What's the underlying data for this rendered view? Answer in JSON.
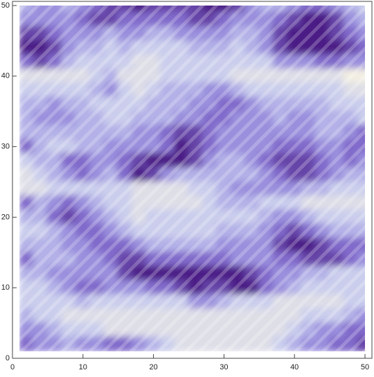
{
  "chart_data": {
    "type": "heatmap",
    "x": [
      2,
      4,
      6,
      8,
      10,
      12,
      14,
      16,
      18,
      20,
      22,
      24,
      26,
      28,
      30,
      32,
      34,
      36,
      38,
      40,
      42,
      44,
      46,
      48,
      50
    ],
    "y": [
      50,
      48,
      46,
      44,
      42,
      40,
      38,
      36,
      34,
      32,
      30,
      28,
      26,
      24,
      22,
      20,
      18,
      16,
      14,
      12,
      10,
      8,
      6,
      4,
      2
    ],
    "z": [
      [
        0.4,
        0.5,
        0.5,
        0.4,
        0.5,
        0.6,
        0.7,
        0.7,
        0.8,
        0.7,
        0.7,
        0.7,
        0.7,
        0.8,
        0.8,
        0.7,
        0.5,
        0.4,
        0.4,
        0.5,
        0.6,
        0.6,
        0.5,
        0.4,
        0.3
      ],
      [
        0.5,
        0.5,
        0.5,
        0.5,
        0.6,
        0.7,
        0.7,
        0.6,
        0.6,
        0.6,
        0.6,
        0.6,
        0.7,
        0.7,
        0.6,
        0.5,
        0.5,
        0.5,
        0.6,
        0.7,
        0.8,
        0.8,
        0.7,
        0.5,
        0.4
      ],
      [
        0.7,
        0.7,
        0.6,
        0.5,
        0.5,
        0.5,
        0.4,
        0.5,
        0.5,
        0.4,
        0.4,
        0.5,
        0.5,
        0.5,
        0.5,
        0.4,
        0.4,
        0.5,
        0.7,
        0.8,
        0.8,
        0.8,
        0.7,
        0.6,
        0.5
      ],
      [
        0.8,
        0.8,
        0.7,
        0.5,
        0.4,
        0.4,
        0.3,
        0.4,
        0.3,
        0.3,
        0.3,
        0.3,
        0.4,
        0.4,
        0.4,
        0.3,
        0.4,
        0.5,
        0.7,
        0.8,
        0.8,
        0.8,
        0.8,
        0.7,
        0.6
      ],
      [
        0.6,
        0.7,
        0.6,
        0.4,
        0.3,
        0.3,
        0.3,
        0.3,
        0.2,
        0.2,
        0.3,
        0.3,
        0.3,
        0.3,
        0.3,
        0.3,
        0.3,
        0.3,
        0.5,
        0.5,
        0.5,
        0.6,
        0.6,
        0.5,
        0.5
      ],
      [
        0.2,
        0.2,
        0.2,
        0.2,
        0.2,
        0.3,
        0.4,
        0.2,
        0.2,
        0.2,
        0.3,
        0.3,
        0.3,
        0.3,
        0.3,
        0.2,
        0.2,
        0.2,
        0.2,
        0.2,
        0.2,
        0.2,
        0.2,
        0.1,
        0.1
      ],
      [
        0.3,
        0.3,
        0.3,
        0.3,
        0.3,
        0.4,
        0.5,
        0.3,
        0.2,
        0.3,
        0.4,
        0.4,
        0.4,
        0.5,
        0.5,
        0.4,
        0.3,
        0.3,
        0.3,
        0.3,
        0.3,
        0.3,
        0.3,
        0.2,
        0.2
      ],
      [
        0.4,
        0.4,
        0.5,
        0.4,
        0.4,
        0.3,
        0.3,
        0.3,
        0.3,
        0.4,
        0.4,
        0.4,
        0.5,
        0.5,
        0.6,
        0.6,
        0.5,
        0.4,
        0.4,
        0.4,
        0.4,
        0.4,
        0.3,
        0.3,
        0.3
      ],
      [
        0.4,
        0.5,
        0.5,
        0.5,
        0.4,
        0.4,
        0.3,
        0.3,
        0.4,
        0.4,
        0.4,
        0.5,
        0.5,
        0.6,
        0.6,
        0.5,
        0.5,
        0.5,
        0.4,
        0.5,
        0.5,
        0.4,
        0.4,
        0.4,
        0.3
      ],
      [
        0.4,
        0.4,
        0.4,
        0.4,
        0.4,
        0.4,
        0.4,
        0.4,
        0.5,
        0.5,
        0.6,
        0.7,
        0.7,
        0.6,
        0.5,
        0.5,
        0.5,
        0.5,
        0.5,
        0.5,
        0.5,
        0.4,
        0.4,
        0.5,
        0.6
      ],
      [
        0.6,
        0.4,
        0.3,
        0.3,
        0.4,
        0.4,
        0.5,
        0.5,
        0.5,
        0.5,
        0.6,
        0.8,
        0.7,
        0.6,
        0.5,
        0.5,
        0.5,
        0.5,
        0.6,
        0.6,
        0.6,
        0.5,
        0.5,
        0.6,
        0.6
      ],
      [
        0.3,
        0.4,
        0.4,
        0.6,
        0.6,
        0.5,
        0.5,
        0.6,
        0.7,
        0.8,
        0.8,
        0.8,
        0.7,
        0.5,
        0.4,
        0.4,
        0.5,
        0.6,
        0.7,
        0.7,
        0.7,
        0.6,
        0.5,
        0.6,
        0.5
      ],
      [
        0.2,
        0.3,
        0.4,
        0.5,
        0.6,
        0.5,
        0.4,
        0.6,
        0.8,
        0.7,
        0.5,
        0.4,
        0.4,
        0.4,
        0.4,
        0.4,
        0.4,
        0.5,
        0.6,
        0.7,
        0.7,
        0.6,
        0.5,
        0.4,
        0.4
      ],
      [
        0.2,
        0.2,
        0.3,
        0.3,
        0.3,
        0.3,
        0.3,
        0.3,
        0.2,
        0.2,
        0.2,
        0.2,
        0.3,
        0.3,
        0.4,
        0.5,
        0.5,
        0.5,
        0.5,
        0.5,
        0.4,
        0.4,
        0.3,
        0.3,
        0.3
      ],
      [
        0.6,
        0.4,
        0.5,
        0.6,
        0.5,
        0.4,
        0.3,
        0.3,
        0.2,
        0.2,
        0.2,
        0.2,
        0.2,
        0.3,
        0.4,
        0.4,
        0.4,
        0.3,
        0.3,
        0.3,
        0.2,
        0.2,
        0.2,
        0.2,
        0.2
      ],
      [
        0.4,
        0.4,
        0.6,
        0.7,
        0.6,
        0.5,
        0.4,
        0.3,
        0.2,
        0.3,
        0.3,
        0.3,
        0.3,
        0.3,
        0.3,
        0.3,
        0.3,
        0.4,
        0.5,
        0.5,
        0.4,
        0.3,
        0.3,
        0.3,
        0.3
      ],
      [
        0.3,
        0.3,
        0.4,
        0.5,
        0.6,
        0.6,
        0.5,
        0.4,
        0.3,
        0.3,
        0.3,
        0.3,
        0.3,
        0.3,
        0.4,
        0.4,
        0.4,
        0.5,
        0.6,
        0.7,
        0.6,
        0.5,
        0.4,
        0.4,
        0.4
      ],
      [
        0.4,
        0.4,
        0.4,
        0.5,
        0.5,
        0.6,
        0.6,
        0.6,
        0.5,
        0.4,
        0.4,
        0.4,
        0.4,
        0.4,
        0.5,
        0.5,
        0.5,
        0.5,
        0.7,
        0.8,
        0.8,
        0.7,
        0.6,
        0.6,
        0.6
      ],
      [
        0.6,
        0.4,
        0.4,
        0.4,
        0.5,
        0.5,
        0.6,
        0.7,
        0.7,
        0.6,
        0.6,
        0.6,
        0.6,
        0.6,
        0.6,
        0.5,
        0.5,
        0.5,
        0.6,
        0.6,
        0.7,
        0.7,
        0.7,
        0.6,
        0.5
      ],
      [
        0.4,
        0.4,
        0.5,
        0.5,
        0.5,
        0.5,
        0.5,
        0.7,
        0.8,
        0.8,
        0.8,
        0.8,
        0.8,
        0.8,
        0.8,
        0.8,
        0.7,
        0.6,
        0.5,
        0.5,
        0.4,
        0.4,
        0.3,
        0.3,
        0.3
      ],
      [
        0.3,
        0.3,
        0.4,
        0.5,
        0.6,
        0.6,
        0.5,
        0.5,
        0.5,
        0.6,
        0.6,
        0.7,
        0.8,
        0.7,
        0.7,
        0.8,
        0.8,
        0.6,
        0.5,
        0.4,
        0.3,
        0.3,
        0.3,
        0.3,
        0.3
      ],
      [
        0.3,
        0.3,
        0.3,
        0.3,
        0.4,
        0.3,
        0.3,
        0.3,
        0.3,
        0.3,
        0.3,
        0.3,
        0.5,
        0.5,
        0.4,
        0.3,
        0.3,
        0.3,
        0.2,
        0.2,
        0.2,
        0.2,
        0.2,
        0.3,
        0.3
      ],
      [
        0.4,
        0.3,
        0.3,
        0.2,
        0.2,
        0.2,
        0.2,
        0.2,
        0.2,
        0.2,
        0.2,
        0.2,
        0.2,
        0.2,
        0.2,
        0.2,
        0.2,
        0.2,
        0.2,
        0.2,
        0.3,
        0.3,
        0.3,
        0.4,
        0.5
      ],
      [
        0.5,
        0.5,
        0.4,
        0.3,
        0.3,
        0.3,
        0.2,
        0.2,
        0.2,
        0.2,
        0.2,
        0.2,
        0.2,
        0.2,
        0.2,
        0.2,
        0.2,
        0.2,
        0.2,
        0.3,
        0.4,
        0.5,
        0.5,
        0.6,
        0.6
      ],
      [
        0.6,
        0.5,
        0.5,
        0.4,
        0.5,
        0.5,
        0.6,
        0.6,
        0.5,
        0.4,
        0.3,
        0.2,
        0.2,
        0.2,
        0.2,
        0.2,
        0.2,
        0.2,
        0.3,
        0.4,
        0.5,
        0.5,
        0.6,
        0.6,
        0.7
      ]
    ],
    "colormap": [
      "#f3efe2",
      "#c3c8ee",
      "#8a78d6",
      "#4b1f86"
    ],
    "xlim": [
      0,
      50
    ],
    "ylim": [
      0,
      50
    ],
    "xticks": [
      0,
      10,
      20,
      30,
      40,
      50
    ],
    "yticks": [
      0,
      10,
      20,
      30,
      40,
      50
    ]
  }
}
